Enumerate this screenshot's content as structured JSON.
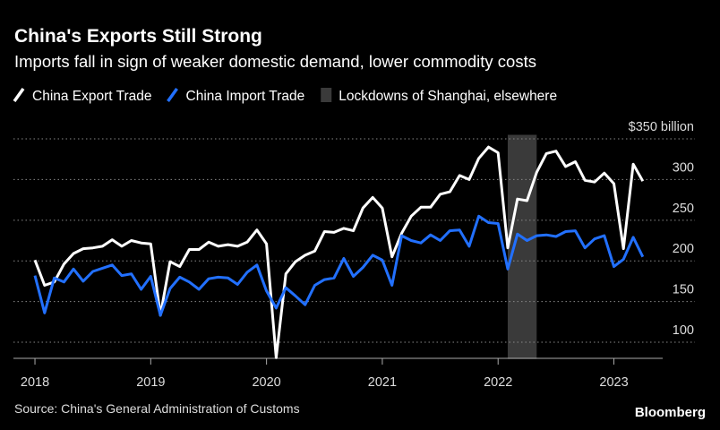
{
  "chart_data": {
    "type": "line",
    "title": "China's Exports Still Strong",
    "subtitle": "Imports fall in sign of weaker domestic demand, lower commodity costs",
    "source": "Source: China's General Administration of Customs",
    "brand": "Bloomberg",
    "x": [
      2018.0,
      2018.083,
      2018.167,
      2018.25,
      2018.333,
      2018.417,
      2018.5,
      2018.583,
      2018.667,
      2018.75,
      2018.833,
      2018.917,
      2019.0,
      2019.083,
      2019.167,
      2019.25,
      2019.333,
      2019.417,
      2019.5,
      2019.583,
      2019.667,
      2019.75,
      2019.833,
      2019.917,
      2020.0,
      2020.083,
      2020.167,
      2020.25,
      2020.333,
      2020.417,
      2020.5,
      2020.583,
      2020.667,
      2020.75,
      2020.833,
      2020.917,
      2021.0,
      2021.083,
      2021.167,
      2021.25,
      2021.333,
      2021.417,
      2021.5,
      2021.583,
      2021.667,
      2021.75,
      2021.833,
      2021.917,
      2022.0,
      2022.083,
      2022.167,
      2022.25,
      2022.333,
      2022.417,
      2022.5,
      2022.583,
      2022.667,
      2022.75,
      2022.833,
      2022.917,
      2023.0,
      2023.083,
      2023.167,
      2023.25
    ],
    "series": [
      {
        "name": "China Export Trade",
        "color": "#ffffff",
        "values": [
          201,
          170,
          174,
          196,
          209,
          215,
          216,
          218,
          226,
          218,
          225,
          222,
          221,
          133,
          199,
          193,
          214,
          214,
          223,
          218,
          220,
          218,
          223,
          238,
          221,
          81,
          184,
          199,
          207,
          212,
          236,
          235,
          240,
          237,
          265,
          278,
          265,
          205,
          234,
          255,
          266,
          266,
          282,
          285,
          305,
          300,
          326,
          340,
          333,
          216,
          276,
          274,
          309,
          332,
          335,
          316,
          322,
          299,
          297,
          308,
          295,
          215,
          319,
          298
        ]
      },
      {
        "name": "China Import Trade",
        "color": "#2270ff",
        "values": [
          182,
          136,
          179,
          174,
          190,
          175,
          187,
          191,
          195,
          182,
          184,
          165,
          181,
          133,
          166,
          180,
          174,
          165,
          178,
          180,
          179,
          171,
          186,
          195,
          163,
          142,
          167,
          157,
          146,
          170,
          177,
          179,
          203,
          181,
          192,
          207,
          201,
          170,
          231,
          225,
          222,
          232,
          225,
          237,
          238,
          218,
          255,
          247,
          246,
          190,
          233,
          225,
          231,
          232,
          230,
          236,
          237,
          216,
          227,
          231,
          193,
          202,
          229,
          205
        ]
      }
    ],
    "shade": {
      "name": "Lockdowns of Shanghai, elsewhere",
      "color": "#3a3a3a",
      "x": [
        2022.083,
        2022.333
      ]
    },
    "xlim": [
      2017.9,
      2023.45
    ],
    "xticks": [
      2018,
      2019,
      2020,
      2021,
      2022,
      2023
    ],
    "ylim": [
      75,
      355
    ],
    "yticks": [
      100,
      150,
      200,
      250,
      300,
      {
        "value": 350,
        "label": "$350 billion"
      }
    ],
    "grid": true
  }
}
